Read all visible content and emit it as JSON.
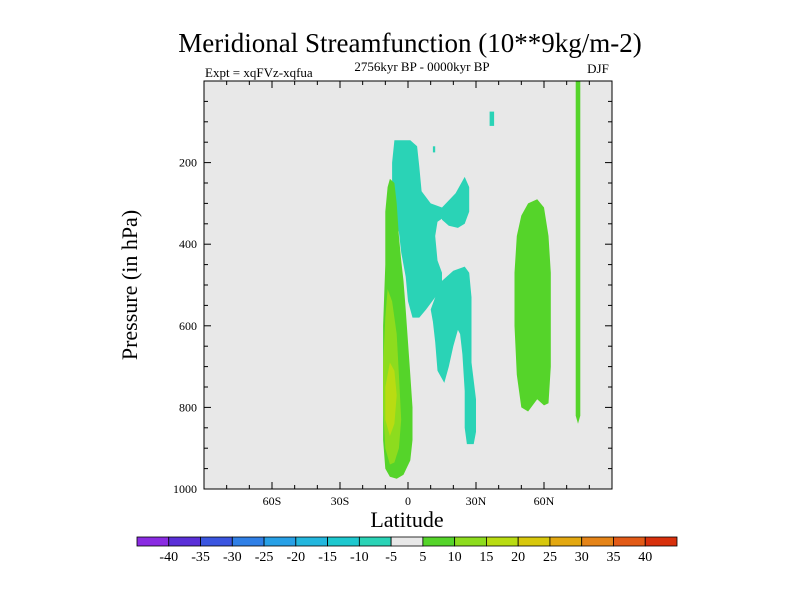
{
  "chart_data": {
    "type": "contour",
    "title": "Meridional Streamfunction (10**9kg/m-2)",
    "experiment_label": "Expt = xqFVz-xqfua",
    "period_label": "2756kyr BP - 0000kyr BP",
    "season_label": "DJF",
    "xlabel": "Latitude",
    "ylabel": "Pressure (in hPa)",
    "xlim": [
      -90,
      90
    ],
    "ylim": [
      0,
      1000
    ],
    "y_inverted": true,
    "x_ticks": [
      {
        "value": -60,
        "label": "60S"
      },
      {
        "value": -30,
        "label": "30S"
      },
      {
        "value": 0,
        "label": "0"
      },
      {
        "value": 30,
        "label": "30N"
      },
      {
        "value": 60,
        "label": "60N"
      }
    ],
    "y_ticks": [
      {
        "value": 200,
        "label": "200"
      },
      {
        "value": 400,
        "label": "400"
      },
      {
        "value": 600,
        "label": "600"
      },
      {
        "value": 800,
        "label": "800"
      },
      {
        "value": 1000,
        "label": "1000"
      }
    ],
    "background_color": "#e8e8e8",
    "colorbar": {
      "boundaries": [
        "-40",
        "-35",
        "-30",
        "-25",
        "-20",
        "-15",
        "-10",
        "-5",
        "5",
        "10",
        "15",
        "20",
        "25",
        "30",
        "35",
        "40"
      ],
      "colors": [
        "#8a2be2",
        "#5a2fd8",
        "#3a55e0",
        "#2f7fe6",
        "#27a0e6",
        "#23b7de",
        "#1ec8cf",
        "#2ad3b6",
        "#e8e8e8",
        "#55d42a",
        "#8ddc1e",
        "#b9dc12",
        "#d8c80c",
        "#e3a810",
        "#e58418",
        "#e25a16",
        "#d8300c"
      ]
    },
    "regions": [
      {
        "name": "cyan-upper-band",
        "level": -7,
        "color": "#2ad3b6",
        "points": [
          [
            -6,
            145
          ],
          [
            1,
            145
          ],
          [
            4,
            160
          ],
          [
            5,
            210
          ],
          [
            6,
            270
          ],
          [
            10,
            300
          ],
          [
            15,
            310
          ],
          [
            18,
            315
          ],
          [
            17,
            330
          ],
          [
            13,
            345
          ],
          [
            12,
            380
          ],
          [
            13,
            440
          ],
          [
            15,
            470
          ],
          [
            15,
            510
          ],
          [
            12,
            530
          ],
          [
            8,
            560
          ],
          [
            5,
            580
          ],
          [
            2,
            580
          ],
          [
            0,
            540
          ],
          [
            -1,
            480
          ],
          [
            -3,
            420
          ],
          [
            -4,
            370
          ],
          [
            -6,
            330
          ],
          [
            -7,
            270
          ],
          [
            -7,
            200
          ]
        ]
      },
      {
        "name": "cyan-upper-right-patch",
        "level": -7,
        "color": "#2ad3b6",
        "points": [
          [
            15,
            310
          ],
          [
            21,
            275
          ],
          [
            25,
            235
          ],
          [
            27,
            260
          ],
          [
            27,
            320
          ],
          [
            25,
            350
          ],
          [
            22,
            360
          ],
          [
            18,
            355
          ],
          [
            15,
            340
          ]
        ]
      },
      {
        "name": "cyan-central-column",
        "level": -7,
        "color": "#2ad3b6",
        "points": [
          [
            12,
            530
          ],
          [
            15,
            490
          ],
          [
            20,
            465
          ],
          [
            25,
            455
          ],
          [
            27,
            470
          ],
          [
            28,
            530
          ],
          [
            28,
            620
          ],
          [
            28,
            690
          ],
          [
            30,
            780
          ],
          [
            30,
            860
          ],
          [
            29,
            890
          ],
          [
            26,
            890
          ],
          [
            25,
            850
          ],
          [
            25,
            760
          ],
          [
            24,
            670
          ],
          [
            23,
            620
          ],
          [
            22,
            610
          ],
          [
            20,
            650
          ],
          [
            18,
            700
          ],
          [
            16,
            740
          ],
          [
            13,
            710
          ],
          [
            12,
            640
          ],
          [
            11,
            590
          ],
          [
            10,
            560
          ]
        ]
      },
      {
        "name": "cyan-high-speck",
        "level": -7,
        "color": "#2ad3b6",
        "points": [
          [
            36,
            75
          ],
          [
            38,
            75
          ],
          [
            38,
            110
          ],
          [
            36,
            110
          ]
        ]
      },
      {
        "name": "cyan-small-dot",
        "level": -7,
        "color": "#2ad3b6",
        "points": [
          [
            11,
            160
          ],
          [
            12,
            160
          ],
          [
            12,
            175
          ],
          [
            11,
            175
          ]
        ]
      },
      {
        "name": "green-equatorial-cell",
        "level": 7,
        "color": "#55d42a",
        "points": [
          [
            -8,
            240
          ],
          [
            -6,
            250
          ],
          [
            -5,
            300
          ],
          [
            -4,
            380
          ],
          [
            -3,
            440
          ],
          [
            -2,
            490
          ],
          [
            -1,
            560
          ],
          [
            0,
            640
          ],
          [
            1,
            720
          ],
          [
            2,
            800
          ],
          [
            2,
            880
          ],
          [
            1,
            930
          ],
          [
            -2,
            965
          ],
          [
            -5,
            975
          ],
          [
            -8,
            970
          ],
          [
            -10,
            950
          ],
          [
            -11,
            880
          ],
          [
            -11,
            800
          ],
          [
            -11,
            720
          ],
          [
            -11,
            600
          ],
          [
            -10,
            450
          ],
          [
            -10,
            320
          ],
          [
            -9,
            260
          ]
        ]
      },
      {
        "name": "yellow-green-core",
        "level": 12,
        "color": "#8ddc1e",
        "points": [
          [
            -9,
            510
          ],
          [
            -7,
            540
          ],
          [
            -5,
            620
          ],
          [
            -4,
            720
          ],
          [
            -3,
            830
          ],
          [
            -4,
            900
          ],
          [
            -6,
            935
          ],
          [
            -8,
            940
          ],
          [
            -10,
            900
          ],
          [
            -11,
            800
          ],
          [
            -11,
            700
          ],
          [
            -10,
            580
          ]
        ]
      },
      {
        "name": "yellow-core",
        "level": 17,
        "color": "#b9dc12",
        "points": [
          [
            -8,
            690
          ],
          [
            -6,
            710
          ],
          [
            -5,
            770
          ],
          [
            -6,
            840
          ],
          [
            -8,
            870
          ],
          [
            -10,
            830
          ],
          [
            -10,
            750
          ]
        ]
      },
      {
        "name": "green-midlatitude-cell",
        "level": 7,
        "color": "#55d42a",
        "points": [
          [
            48,
            380
          ],
          [
            50,
            330
          ],
          [
            53,
            300
          ],
          [
            57,
            290
          ],
          [
            60,
            310
          ],
          [
            62,
            380
          ],
          [
            63,
            470
          ],
          [
            63,
            580
          ],
          [
            63,
            700
          ],
          [
            62,
            790
          ],
          [
            60,
            795
          ],
          [
            57,
            780
          ],
          [
            53,
            810
          ],
          [
            50,
            800
          ],
          [
            48,
            720
          ],
          [
            47,
            600
          ],
          [
            47,
            470
          ]
        ]
      },
      {
        "name": "green-polar-stripe",
        "level": 7,
        "color": "#55d42a",
        "points": [
          [
            74,
            0
          ],
          [
            76,
            0
          ],
          [
            76,
            820
          ],
          [
            75,
            840
          ],
          [
            74,
            820
          ]
        ]
      }
    ]
  }
}
